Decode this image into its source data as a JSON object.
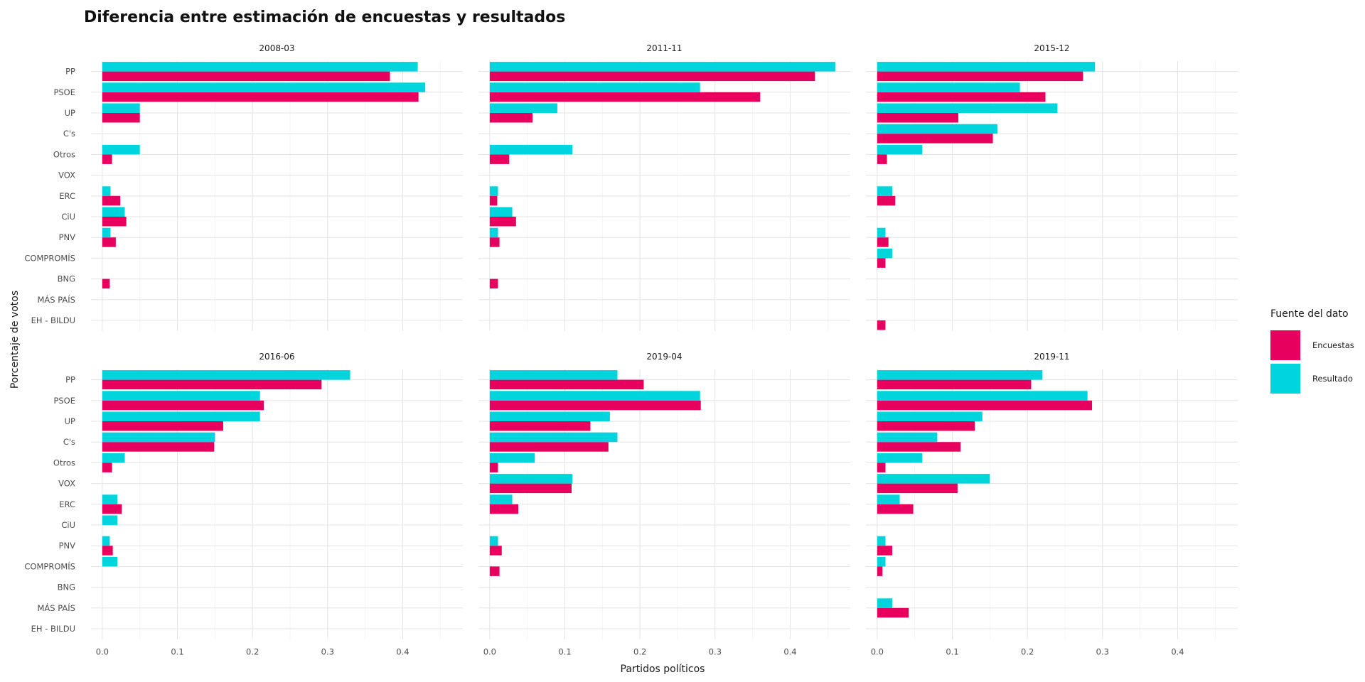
{
  "chart_data": {
    "type": "bar",
    "orientation": "horizontal",
    "title": "Diferencia entre estimación de encuestas y resultados",
    "xlabel": "Partidos políticos",
    "ylabel": "Porcentaje de votos",
    "xlim": [
      -0.015,
      0.48
    ],
    "x_ticks": [
      0,
      0.1,
      0.2,
      0.3,
      0.4
    ],
    "x_tick_labels": [
      "0.0",
      "0.1",
      "0.2",
      "0.3",
      "0.4"
    ],
    "categories": [
      "PP",
      "PSOE",
      "UP",
      "C's",
      "Otros",
      "VOX",
      "ERC",
      "CiU",
      "PNV",
      "COMPROMÍS",
      "BNG",
      "MÁS PAÍS",
      "EH - BILDU"
    ],
    "legend": {
      "title": "Fuente del dato",
      "position": "right",
      "entries": [
        {
          "name": "Encuestas",
          "color": "#e8005f"
        },
        {
          "name": "Resultado",
          "color": "#00d4dc"
        }
      ]
    },
    "facets": [
      {
        "label": "2008-03",
        "series": [
          {
            "name": "Encuestas",
            "values": [
              0.383,
              0.421,
              0.05,
              0,
              0.013,
              0,
              0.024,
              0.032,
              0.018,
              0,
              0.01,
              0,
              0
            ]
          },
          {
            "name": "Resultado",
            "values": [
              0.42,
              0.43,
              0.05,
              0,
              0.05,
              0,
              0.011,
              0.03,
              0.011,
              0,
              0,
              0,
              0
            ]
          }
        ]
      },
      {
        "label": "2011-11",
        "series": [
          {
            "name": "Encuestas",
            "values": [
              0.433,
              0.36,
              0.057,
              0,
              0.026,
              0,
              0.01,
              0.035,
              0.013,
              0,
              0.011,
              0,
              0
            ]
          },
          {
            "name": "Resultado",
            "values": [
              0.46,
              0.28,
              0.09,
              0,
              0.11,
              0,
              0.011,
              0.03,
              0.011,
              0,
              0,
              0,
              0
            ]
          }
        ]
      },
      {
        "label": "2015-12",
        "series": [
          {
            "name": "Encuestas",
            "values": [
              0.274,
              0.224,
              0.108,
              0.154,
              0.013,
              0,
              0.024,
              0,
              0.015,
              0.011,
              0,
              0,
              0.011
            ]
          },
          {
            "name": "Resultado",
            "values": [
              0.29,
              0.19,
              0.24,
              0.16,
              0.06,
              0,
              0.02,
              0,
              0.011,
              0.02,
              0,
              0,
              0
            ]
          }
        ]
      },
      {
        "label": "2016-06",
        "series": [
          {
            "name": "Encuestas",
            "values": [
              0.292,
              0.215,
              0.161,
              0.149,
              0.013,
              0,
              0.026,
              0,
              0.014,
              0,
              0,
              0,
              0
            ]
          },
          {
            "name": "Resultado",
            "values": [
              0.33,
              0.21,
              0.21,
              0.15,
              0.03,
              0,
              0.02,
              0.02,
              0.01,
              0.02,
              0,
              0,
              0
            ]
          }
        ]
      },
      {
        "label": "2019-04",
        "series": [
          {
            "name": "Encuestas",
            "values": [
              0.205,
              0.281,
              0.134,
              0.158,
              0.011,
              0.109,
              0.038,
              0,
              0.016,
              0.013,
              0,
              0,
              0
            ]
          },
          {
            "name": "Resultado",
            "values": [
              0.17,
              0.28,
              0.16,
              0.17,
              0.06,
              0.11,
              0.03,
              0,
              0.011,
              0,
              0,
              0,
              0
            ]
          }
        ]
      },
      {
        "label": "2019-11",
        "series": [
          {
            "name": "Encuestas",
            "values": [
              0.205,
              0.286,
              0.13,
              0.111,
              0.011,
              0.107,
              0.048,
              0,
              0.02,
              0.007,
              0,
              0.042,
              0
            ]
          },
          {
            "name": "Resultado",
            "values": [
              0.22,
              0.28,
              0.14,
              0.08,
              0.06,
              0.15,
              0.03,
              0,
              0.011,
              0.011,
              0,
              0.02,
              0
            ]
          }
        ]
      }
    ]
  }
}
